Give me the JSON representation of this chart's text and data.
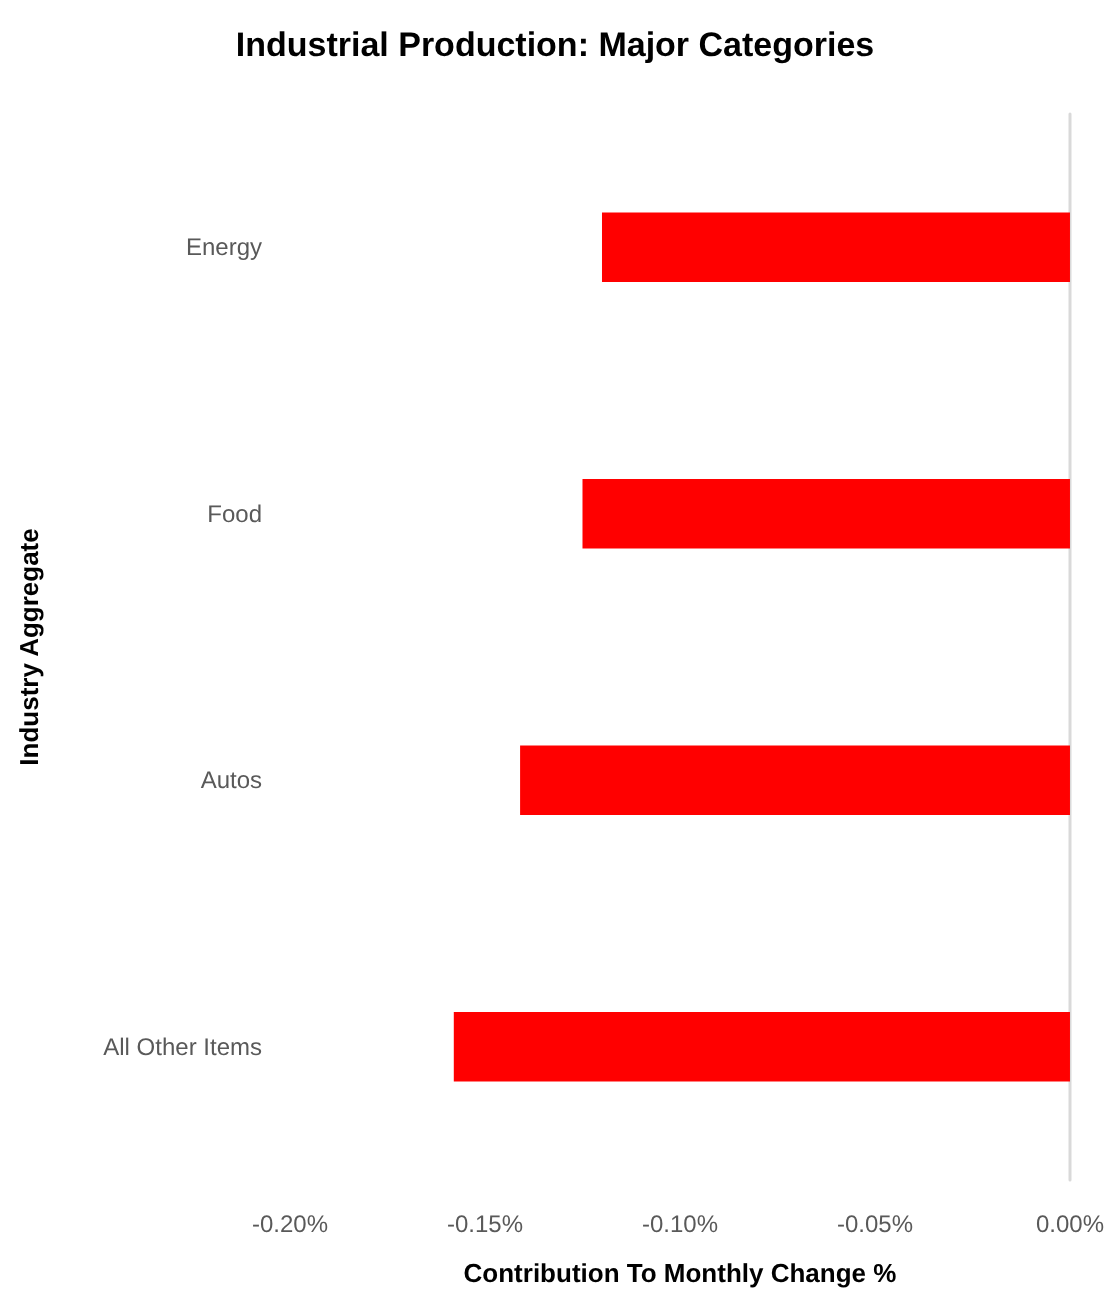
{
  "chart_data": {
    "type": "bar",
    "orientation": "horizontal",
    "title": "Industrial Production: Major Categories",
    "xlabel": "Contribution To Monthly Change %",
    "ylabel": "Industry Aggregate",
    "categories": [
      "Energy",
      "Food",
      "Autos",
      "All Other Items"
    ],
    "values": [
      -0.12,
      -0.125,
      -0.141,
      -0.158
    ],
    "color": "#ff0000",
    "xlim": [
      -0.2,
      0
    ],
    "xticks": [
      {
        "value": -0.2,
        "label": "-0.20%"
      },
      {
        "value": -0.15,
        "label": "-0.15%"
      },
      {
        "value": -0.1,
        "label": "-0.10%"
      },
      {
        "value": -0.05,
        "label": "-0.05%"
      },
      {
        "value": 0,
        "label": "0.00%"
      }
    ]
  }
}
